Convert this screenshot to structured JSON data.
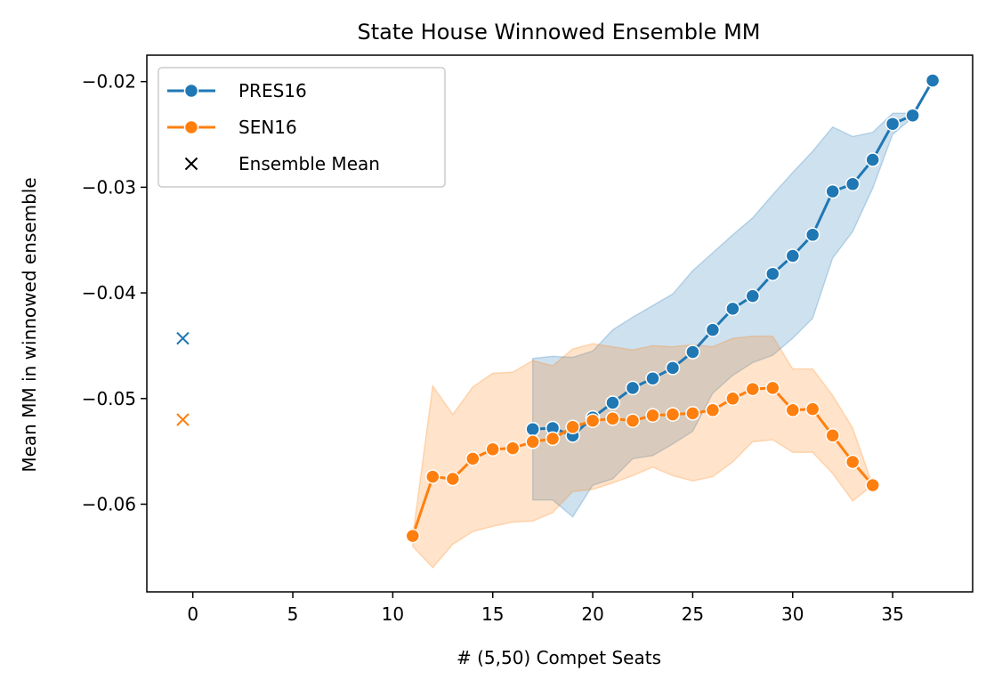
{
  "chart_data": {
    "type": "line",
    "title": "State House Winnowed Ensemble MM",
    "xlabel": "# (5,50) Compet Seats",
    "ylabel": "Mean MM in winnowed ensemble",
    "xlim": [
      -2.3,
      39.0
    ],
    "ylim": [
      -0.0683,
      -0.0175
    ],
    "xticks": [
      0,
      5,
      10,
      15,
      20,
      25,
      30,
      35
    ],
    "xtick_labels": [
      "0",
      "5",
      "10",
      "15",
      "20",
      "25",
      "30",
      "35"
    ],
    "yticks": [
      -0.02,
      -0.03,
      -0.04,
      -0.05,
      -0.06
    ],
    "ytick_labels": [
      "−0.02",
      "−0.03",
      "−0.04",
      "−0.05",
      "−0.06"
    ],
    "grid": false,
    "legend_position": "top-left",
    "series": [
      {
        "name": "PRES16",
        "color": "#1f77b4",
        "x": [
          17,
          18,
          19,
          20,
          21,
          22,
          23,
          24,
          25,
          26,
          27,
          28,
          29,
          30,
          31,
          32,
          33,
          34,
          35,
          36,
          37
        ],
        "y": [
          -0.0529,
          -0.0528,
          -0.0535,
          -0.0518,
          -0.0504,
          -0.049,
          -0.0481,
          -0.0471,
          -0.0456,
          -0.0435,
          -0.0415,
          -0.0403,
          -0.0382,
          -0.0365,
          -0.0345,
          -0.0304,
          -0.0297,
          -0.0274,
          -0.024,
          -0.0232,
          -0.0199
        ],
        "ci_upper": [
          -0.0462,
          -0.046,
          -0.0461,
          -0.0455,
          -0.0435,
          -0.0423,
          -0.0412,
          -0.0401,
          -0.0379,
          -0.0362,
          -0.0345,
          -0.0329,
          -0.0307,
          -0.0286,
          -0.0266,
          -0.0243,
          -0.0252,
          -0.0248,
          -0.023,
          -0.023,
          -0.0199
        ],
        "ci_lower": [
          -0.0596,
          -0.0596,
          -0.0612,
          -0.0582,
          -0.0576,
          -0.0557,
          -0.0554,
          -0.0543,
          -0.0531,
          -0.0495,
          -0.0478,
          -0.0466,
          -0.0459,
          -0.0443,
          -0.0424,
          -0.0367,
          -0.0342,
          -0.0301,
          -0.025,
          -0.0234,
          -0.0199
        ],
        "ensemble_mean": -0.0443
      },
      {
        "name": "SEN16",
        "color": "#ff7f0e",
        "x": [
          11,
          12,
          13,
          14,
          15,
          16,
          17,
          18,
          19,
          20,
          21,
          22,
          23,
          24,
          25,
          26,
          27,
          28,
          29,
          30,
          31,
          32,
          33,
          34
        ],
        "y": [
          -0.063,
          -0.0574,
          -0.0576,
          -0.0557,
          -0.0548,
          -0.0547,
          -0.0541,
          -0.0538,
          -0.0527,
          -0.0521,
          -0.0519,
          -0.0521,
          -0.0516,
          -0.0515,
          -0.0514,
          -0.0511,
          -0.05,
          -0.0491,
          -0.049,
          -0.0511,
          -0.051,
          -0.0535,
          -0.056,
          -0.0582
        ],
        "ci_upper": [
          -0.063,
          -0.0488,
          -0.0515,
          -0.0489,
          -0.0476,
          -0.0475,
          -0.0464,
          -0.0469,
          -0.0453,
          -0.0448,
          -0.0451,
          -0.0454,
          -0.045,
          -0.0451,
          -0.0449,
          -0.0451,
          -0.0443,
          -0.0441,
          -0.0441,
          -0.0472,
          -0.0472,
          -0.0497,
          -0.0528,
          -0.0582
        ],
        "ci_lower": [
          -0.064,
          -0.066,
          -0.0638,
          -0.0626,
          -0.0621,
          -0.0617,
          -0.0616,
          -0.0608,
          -0.0588,
          -0.0586,
          -0.058,
          -0.0573,
          -0.0565,
          -0.0573,
          -0.0578,
          -0.0574,
          -0.056,
          -0.0541,
          -0.0539,
          -0.0551,
          -0.0551,
          -0.0571,
          -0.0597,
          -0.0582
        ],
        "ensemble_mean": -0.052
      }
    ],
    "ensemble_mean_x": -0.5,
    "legend": [
      {
        "label": "PRES16",
        "marker": "line-dot",
        "color": "#1f77b4"
      },
      {
        "label": "SEN16",
        "marker": "line-dot",
        "color": "#ff7f0e"
      },
      {
        "label": "Ensemble Mean",
        "marker": "x",
        "color": "#000000"
      }
    ]
  }
}
